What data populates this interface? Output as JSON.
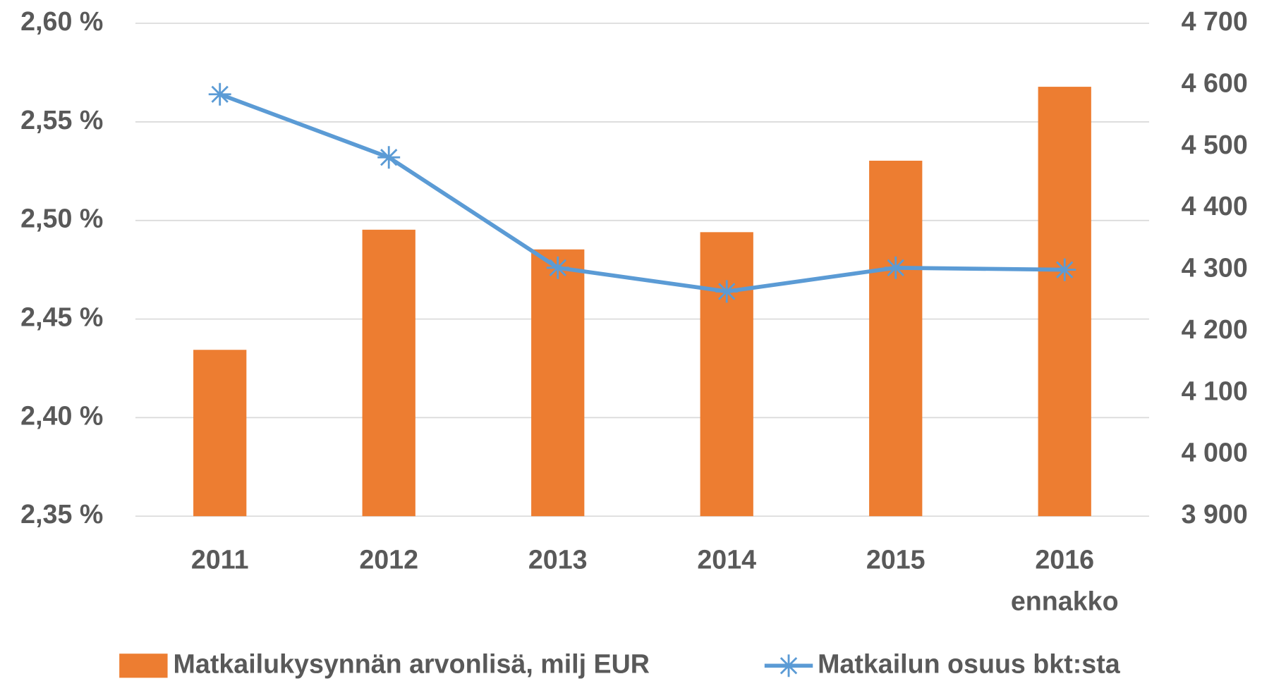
{
  "chart_data": {
    "type": "bar_line",
    "categories": [
      "2011",
      "2012",
      "2013",
      "2014",
      "2015",
      "2016\nennakko"
    ],
    "series": [
      {
        "name": "Matkailukysynnän arvonlisä, milj EUR",
        "type": "bar",
        "axis": "y2",
        "color": "#ed7d31",
        "values": [
          4170,
          4365,
          4333,
          4361,
          4477,
          4597
        ]
      },
      {
        "name": "Matkailun osuus bkt:sta",
        "type": "line",
        "axis": "y",
        "color": "#5b9bd5",
        "values": [
          2.564,
          2.532,
          2.476,
          2.464,
          2.476,
          2.475
        ]
      }
    ],
    "ylim": [
      2.35,
      2.6
    ],
    "yticks": [
      {
        "value": 2.35,
        "label": "2,35 %"
      },
      {
        "value": 2.4,
        "label": "2,40 %"
      },
      {
        "value": 2.45,
        "label": "2,45 %"
      },
      {
        "value": 2.5,
        "label": "2,50 %"
      },
      {
        "value": 2.55,
        "label": "2,55 %"
      },
      {
        "value": 2.6,
        "label": "2,60 %"
      }
    ],
    "y2lim": [
      3900,
      4700
    ],
    "y2ticks": [
      {
        "value": 3900,
        "label": "3 900"
      },
      {
        "value": 4000,
        "label": "4 000"
      },
      {
        "value": 4100,
        "label": "4 100"
      },
      {
        "value": 4200,
        "label": "4 200"
      },
      {
        "value": 4300,
        "label": "4 300"
      },
      {
        "value": 4400,
        "label": "4 400"
      },
      {
        "value": 4500,
        "label": "4 500"
      },
      {
        "value": 4600,
        "label": "4 600"
      },
      {
        "value": 4700,
        "label": "4 700"
      }
    ],
    "grid": true,
    "legend": "bottom"
  }
}
